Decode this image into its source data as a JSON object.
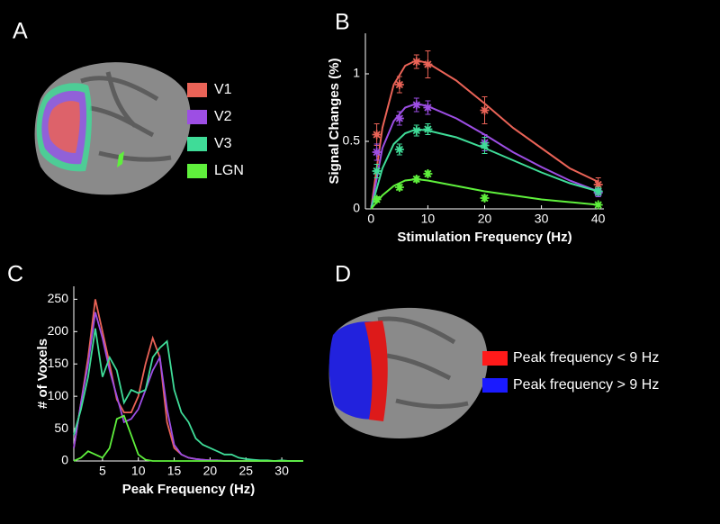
{
  "panel_labels": [
    "A",
    "B",
    "C",
    "D"
  ],
  "legend_d": [
    {
      "label": "Peak frequency < 9 Hz",
      "color": "#ff1a1a"
    },
    {
      "label": "Peak frequency > 9 Hz",
      "color": "#1a1aff"
    }
  ],
  "chart_data": [
    {
      "type": "line",
      "xlabel": "Stimulation Frequency (Hz)",
      "ylabel": "Signal Changes (%)",
      "x": [
        1,
        5,
        8,
        10,
        20,
        40
      ],
      "fit_x": [
        0,
        2,
        4,
        6,
        8,
        10,
        15,
        20,
        25,
        30,
        35,
        40
      ],
      "xlim": [
        -1,
        41
      ],
      "xticks": [
        0,
        10,
        20,
        30,
        40
      ],
      "ylim": [
        0,
        1.3
      ],
      "yticks": [
        0,
        0.5,
        1
      ],
      "series": [
        {
          "name": "V1",
          "color": "#ea6357",
          "values": [
            0.55,
            0.92,
            1.09,
            1.07,
            0.73,
            0.18
          ],
          "errors": [
            0.08,
            0.06,
            0.05,
            0.1,
            0.1,
            0.05
          ],
          "fit_values": [
            0,
            0.6,
            0.92,
            1.06,
            1.1,
            1.08,
            0.95,
            0.78,
            0.6,
            0.45,
            0.3,
            0.2
          ]
        },
        {
          "name": "V2",
          "color": "#9d4ee4",
          "values": [
            0.42,
            0.67,
            0.77,
            0.75,
            0.49,
            0.12
          ],
          "errors": [
            0.06,
            0.05,
            0.05,
            0.05,
            0.06,
            0.03
          ],
          "fit_values": [
            0,
            0.45,
            0.65,
            0.75,
            0.78,
            0.76,
            0.67,
            0.55,
            0.42,
            0.31,
            0.21,
            0.13
          ]
        },
        {
          "name": "V3",
          "color": "#3fdc98",
          "values": [
            0.28,
            0.44,
            0.58,
            0.59,
            0.47,
            0.13
          ],
          "errors": [
            0.05,
            0.04,
            0.04,
            0.04,
            0.06,
            0.03
          ],
          "fit_values": [
            0,
            0.3,
            0.48,
            0.56,
            0.59,
            0.58,
            0.53,
            0.45,
            0.36,
            0.27,
            0.19,
            0.13
          ]
        },
        {
          "name": "LGN",
          "color": "#5ff03c",
          "values": [
            0.07,
            0.16,
            0.22,
            0.26,
            0.08,
            0.03
          ],
          "errors": [
            0.02,
            0.02,
            0.02,
            0.02,
            0.02,
            0.01
          ],
          "fit_values": [
            0,
            0.1,
            0.17,
            0.21,
            0.22,
            0.21,
            0.17,
            0.13,
            0.1,
            0.07,
            0.05,
            0.03
          ]
        }
      ]
    },
    {
      "type": "line",
      "xlabel": "Peak Frequency (Hz)",
      "ylabel": "# of Voxels",
      "x": [
        1,
        2,
        3,
        4,
        5,
        6,
        7,
        8,
        9,
        10,
        11,
        12,
        13,
        14,
        15,
        16,
        17,
        18,
        19,
        20,
        21,
        22,
        23,
        24,
        25,
        26,
        27,
        28,
        29,
        30,
        31,
        32,
        33
      ],
      "xlim": [
        1,
        33
      ],
      "xticks": [
        5,
        10,
        15,
        20,
        25,
        30
      ],
      "ylim": [
        0,
        270
      ],
      "yticks": [
        0,
        50,
        100,
        150,
        200,
        250
      ],
      "series": [
        {
          "color": "#ea6357",
          "values": [
            20,
            90,
            160,
            250,
            200,
            150,
            95,
            75,
            75,
            100,
            150,
            190,
            160,
            60,
            20,
            10,
            5,
            3,
            2,
            1,
            1,
            0,
            0,
            0,
            0,
            0,
            0,
            0,
            0,
            0,
            0,
            0,
            0
          ]
        },
        {
          "color": "#9d4ee4",
          "values": [
            20,
            90,
            150,
            230,
            190,
            140,
            100,
            60,
            65,
            80,
            110,
            140,
            160,
            80,
            25,
            10,
            5,
            3,
            2,
            1,
            1,
            0,
            0,
            0,
            0,
            0,
            0,
            0,
            0,
            0,
            0,
            0,
            0
          ]
        },
        {
          "color": "#3fdc98",
          "values": [
            40,
            80,
            130,
            205,
            130,
            160,
            140,
            90,
            110,
            105,
            110,
            160,
            175,
            185,
            110,
            75,
            60,
            35,
            25,
            20,
            15,
            10,
            10,
            5,
            3,
            2,
            1,
            1,
            0,
            1,
            0,
            0,
            0
          ]
        },
        {
          "color": "#5ff03c",
          "values": [
            0,
            5,
            15,
            10,
            5,
            20,
            65,
            70,
            40,
            10,
            2,
            0,
            0,
            0,
            0,
            0,
            0,
            0,
            0,
            0,
            0,
            0,
            0,
            0,
            0,
            0,
            0,
            0,
            0,
            0,
            0,
            0,
            0
          ]
        }
      ]
    }
  ]
}
